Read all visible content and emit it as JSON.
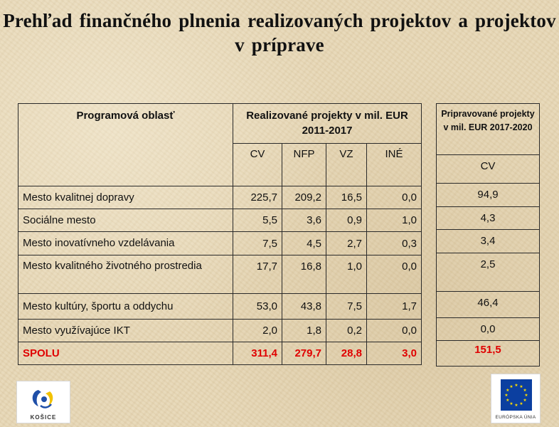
{
  "title": "Prehľad finančného plnenia realizovaných projektov a projektov v príprave",
  "main_table": {
    "header_area": "Programová oblasť",
    "header_realized": "Realizované projekty v mil. EUR 2011-2017",
    "subheaders": [
      "CV",
      "NFP",
      "VZ",
      "INÉ"
    ],
    "rows": [
      {
        "name": "Mesto kvalitnej dopravy",
        "values": [
          "225,7",
          "209,2",
          "16,5",
          "0,0"
        ]
      },
      {
        "name": "Sociálne mesto",
        "values": [
          "5,5",
          "3,6",
          "0,9",
          "1,0"
        ]
      },
      {
        "name": "Mesto inovatívneho vzdelávania",
        "values": [
          "7,5",
          "4,5",
          "2,7",
          "0,3"
        ]
      },
      {
        "name": "Mesto kvalitného životného prostredia",
        "values": [
          "17,7",
          "16,8",
          "1,0",
          "0,0"
        ]
      },
      {
        "name": "Mesto kultúry, športu a oddychu",
        "values": [
          "53,0",
          "43,8",
          "7,5",
          "1,7"
        ]
      },
      {
        "name": "Mesto využívajúce IKT",
        "values": [
          "2,0",
          "1,8",
          "0,2",
          "0,0"
        ]
      }
    ],
    "total": {
      "name": "SPOLU",
      "values": [
        "311,4",
        "279,7",
        "28,8",
        "3,0"
      ]
    }
  },
  "prep_table": {
    "header": "Pripravované projekty v mil. EUR 2017-2020",
    "subheader": "CV",
    "values": [
      "94,9",
      "4,3",
      "3,4",
      "2,5",
      "46,4",
      "0,0"
    ],
    "total": "151,5"
  },
  "logos": {
    "left_label": "KOŠICE",
    "right_label": "EURÓPSKA ÚNIA"
  },
  "colors": {
    "total_red": "#e00000",
    "eu_blue": "#0b3fa0",
    "eu_star": "#ffdd00",
    "kosice_blue": "#1f4fa8",
    "kosice_yellow": "#f2c200"
  }
}
